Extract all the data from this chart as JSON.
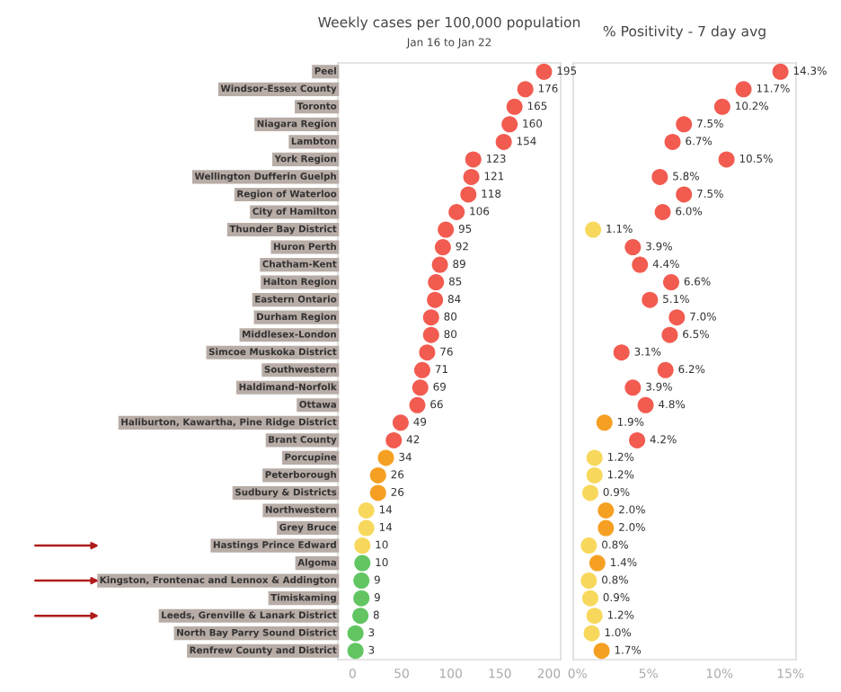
{
  "chart_data": [
    {
      "type": "scatter",
      "orientation": "horizontal",
      "title": "Weekly cases per 100,000 population",
      "subtitle": "Jan 16 to Jan 22",
      "categories": [
        "Peel",
        "Windsor-Essex County",
        "Toronto",
        "Niagara Region",
        "Lambton",
        "York Region",
        "Wellington Dufferin Guelph",
        "Region of Waterloo",
        "City of Hamilton",
        "Thunder Bay District",
        "Huron Perth",
        "Chatham-Kent",
        "Halton Region",
        "Eastern Ontario",
        "Durham Region",
        "Middlesex-London",
        "Simcoe Muskoka District",
        "Southwestern",
        "Haldimand-Norfolk",
        "Ottawa",
        "Haliburton, Kawartha, Pine Ridge District",
        "Brant County",
        "Porcupine",
        "Peterborough",
        "Sudbury & Districts",
        "Northwestern",
        "Grey Bruce",
        "Hastings Prince Edward",
        "Algoma",
        "Kingston, Frontenac and Lennox & Addington",
        "Timiskaming",
        "Leeds, Grenville & Lanark District",
        "North Bay Parry Sound District",
        "Renfrew County and District"
      ],
      "values": [
        195,
        176,
        165,
        160,
        154,
        123,
        121,
        118,
        106,
        95,
        92,
        89,
        85,
        84,
        80,
        80,
        76,
        71,
        69,
        66,
        49,
        42,
        34,
        26,
        26,
        14,
        14,
        10,
        10,
        9,
        9,
        8,
        3,
        3
      ],
      "colors": [
        "#f25b50",
        "#f25b50",
        "#f25b50",
        "#f25b50",
        "#f25b50",
        "#f25b50",
        "#f25b50",
        "#f25b50",
        "#f25b50",
        "#f25b50",
        "#f25b50",
        "#f25b50",
        "#f25b50",
        "#f25b50",
        "#f25b50",
        "#f25b50",
        "#f25b50",
        "#f25b50",
        "#f25b50",
        "#f25b50",
        "#f25b50",
        "#f25b50",
        "#f5a023",
        "#f5a023",
        "#f5a023",
        "#f8d85c",
        "#f8d85c",
        "#f8d85c",
        "#62c562",
        "#62c562",
        "#62c562",
        "#62c562",
        "#62c562",
        "#62c562"
      ],
      "marker": "circle",
      "data_labels": true,
      "xlim": [
        -15,
        212
      ],
      "xticks": [
        0,
        50,
        100,
        150,
        200
      ]
    },
    {
      "type": "scatter",
      "orientation": "horizontal",
      "title": "% Positivity - 7 day avg",
      "values": [
        14.3,
        11.7,
        10.2,
        7.5,
        6.7,
        10.5,
        5.8,
        7.5,
        6.0,
        1.1,
        3.9,
        4.4,
        6.6,
        5.1,
        7.0,
        6.5,
        3.1,
        6.2,
        3.9,
        4.8,
        1.9,
        4.2,
        1.2,
        1.2,
        0.9,
        2.0,
        2.0,
        0.8,
        1.4,
        0.8,
        0.9,
        1.2,
        1.0,
        1.7
      ],
      "value_labels": [
        "14.3%",
        "11.7%",
        "10.2%",
        "7.5%",
        "6.7%",
        "10.5%",
        "5.8%",
        "7.5%",
        "6.0%",
        "1.1%",
        "3.9%",
        "4.4%",
        "6.6%",
        "5.1%",
        "7.0%",
        "6.5%",
        "3.1%",
        "6.2%",
        "3.9%",
        "4.8%",
        "1.9%",
        "4.2%",
        "1.2%",
        "1.2%",
        "0.9%",
        "2.0%",
        "2.0%",
        "0.8%",
        "1.4%",
        "0.8%",
        "0.9%",
        "1.2%",
        "1.0%",
        "1.7%"
      ],
      "colors": [
        "#f25b50",
        "#f25b50",
        "#f25b50",
        "#f25b50",
        "#f25b50",
        "#f25b50",
        "#f25b50",
        "#f25b50",
        "#f25b50",
        "#f8d85c",
        "#f25b50",
        "#f25b50",
        "#f25b50",
        "#f25b50",
        "#f25b50",
        "#f25b50",
        "#f25b50",
        "#f25b50",
        "#f25b50",
        "#f25b50",
        "#f5a023",
        "#f25b50",
        "#f8d85c",
        "#f8d85c",
        "#f8d85c",
        "#f5a023",
        "#f5a023",
        "#f8d85c",
        "#f5a023",
        "#f8d85c",
        "#f8d85c",
        "#f8d85c",
        "#f8d85c",
        "#f5a023"
      ],
      "marker": "circle",
      "xlim": [
        -0.3,
        15.4
      ],
      "xticks": [
        {
          "value": 0,
          "label": "0%"
        },
        {
          "value": 5,
          "label": "5%"
        },
        {
          "value": 10,
          "label": "10%"
        },
        {
          "value": 15,
          "label": "15%"
        }
      ],
      "tick_labels": "x"
    }
  ]
}
